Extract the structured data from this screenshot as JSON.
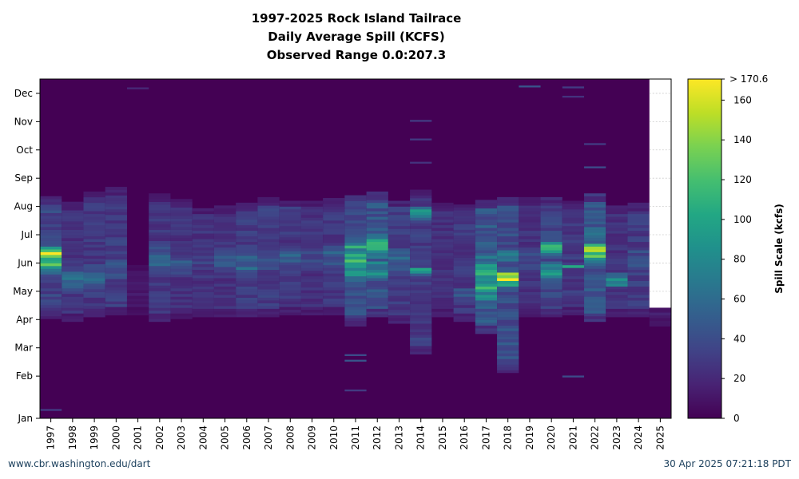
{
  "title": {
    "line1": "1997-2025 Rock Island Tailrace",
    "line2": "Daily Average Spill (KCFS)",
    "line3": "Observed Range 0.0:207.3"
  },
  "footer": {
    "source_link": "www.cbr.washington.edu/dart",
    "timestamp": "30 Apr 2025 07:21:18 PDT"
  },
  "chart_data": {
    "type": "heatmap",
    "title": "1997-2025 Rock Island Tailrace Daily Average Spill (KCFS)",
    "xlabel": "",
    "ylabel": "",
    "x_categories": [
      "1997",
      "1998",
      "1999",
      "2000",
      "2001",
      "2002",
      "2003",
      "2004",
      "2005",
      "2006",
      "2007",
      "2008",
      "2009",
      "2010",
      "2011",
      "2012",
      "2013",
      "2014",
      "2015",
      "2016",
      "2017",
      "2018",
      "2019",
      "2020",
      "2021",
      "2022",
      "2023",
      "2024",
      "2025"
    ],
    "y_categories": [
      "Jan",
      "Feb",
      "Mar",
      "Apr",
      "May",
      "Jun",
      "Jul",
      "Aug",
      "Sep",
      "Oct",
      "Nov",
      "Dec"
    ],
    "y_range_days": [
      1,
      366
    ],
    "colorbar": {
      "label": "Spill Scale (kcfs)",
      "range": [
        0,
        170.6
      ],
      "ticks": [
        0,
        20,
        40,
        60,
        80,
        100,
        120,
        140,
        160
      ],
      "top_label": "> 170.6",
      "colormap": "viridis"
    },
    "observed_range": [
      0.0,
      207.3
    ],
    "data_end_2025_day": 120,
    "season_profiles": [
      {
        "year": "1997",
        "start": 108,
        "end": 238,
        "base": 35,
        "peaks": [
          {
            "day": 168,
            "value": 135,
            "width": 14
          },
          {
            "day": 178,
            "value": 160,
            "width": 6
          }
        ]
      },
      {
        "year": "1998",
        "start": 105,
        "end": 232,
        "base": 25,
        "peaks": [
          {
            "day": 150,
            "value": 55,
            "width": 20
          }
        ]
      },
      {
        "year": "1999",
        "start": 110,
        "end": 244,
        "base": 28,
        "peaks": [
          {
            "day": 150,
            "value": 50,
            "width": 25
          }
        ]
      },
      {
        "year": "2000",
        "start": 112,
        "end": 248,
        "base": 30,
        "peaks": [
          {
            "day": 160,
            "value": 40,
            "width": 30
          }
        ]
      },
      {
        "year": "2001",
        "start": 112,
        "end": 165,
        "base": 12,
        "peaks": []
      },
      {
        "year": "2002",
        "start": 105,
        "end": 240,
        "base": 28,
        "peaks": [
          {
            "day": 170,
            "value": 60,
            "width": 20
          }
        ]
      },
      {
        "year": "2003",
        "start": 108,
        "end": 235,
        "base": 25,
        "peaks": [
          {
            "day": 165,
            "value": 45,
            "width": 20
          }
        ]
      },
      {
        "year": "2004",
        "start": 110,
        "end": 226,
        "base": 25,
        "peaks": [
          {
            "day": 170,
            "value": 35,
            "width": 20
          }
        ]
      },
      {
        "year": "2005",
        "start": 110,
        "end": 228,
        "base": 25,
        "peaks": [
          {
            "day": 170,
            "value": 45,
            "width": 20
          }
        ]
      },
      {
        "year": "2006",
        "start": 110,
        "end": 230,
        "base": 30,
        "peaks": [
          {
            "day": 165,
            "value": 55,
            "width": 20
          }
        ]
      },
      {
        "year": "2007",
        "start": 110,
        "end": 236,
        "base": 30,
        "peaks": [
          {
            "day": 170,
            "value": 45,
            "width": 20
          }
        ]
      },
      {
        "year": "2008",
        "start": 112,
        "end": 234,
        "base": 28,
        "peaks": [
          {
            "day": 175,
            "value": 50,
            "width": 18
          }
        ]
      },
      {
        "year": "2009",
        "start": 112,
        "end": 234,
        "base": 25,
        "peaks": [
          {
            "day": 170,
            "value": 40,
            "width": 18
          }
        ]
      },
      {
        "year": "2010",
        "start": 112,
        "end": 236,
        "base": 28,
        "peaks": [
          {
            "day": 175,
            "value": 50,
            "width": 18
          }
        ]
      },
      {
        "year": "2011",
        "start": 100,
        "end": 240,
        "base": 40,
        "peaks": [
          {
            "day": 165,
            "value": 100,
            "width": 25
          },
          {
            "day": 185,
            "value": 90,
            "width": 8
          }
        ]
      },
      {
        "year": "2012",
        "start": 110,
        "end": 242,
        "base": 45,
        "peaks": [
          {
            "day": 185,
            "value": 120,
            "width": 15
          },
          {
            "day": 160,
            "value": 80,
            "width": 15
          }
        ]
      },
      {
        "year": "2013",
        "start": 103,
        "end": 234,
        "base": 30,
        "peaks": [
          {
            "day": 170,
            "value": 50,
            "width": 20
          }
        ]
      },
      {
        "year": "2014",
        "start": 70,
        "end": 245,
        "base": 30,
        "peaks": [
          {
            "day": 158,
            "value": 110,
            "width": 4
          },
          {
            "day": 220,
            "value": 90,
            "width": 8
          }
        ]
      },
      {
        "year": "2015",
        "start": 110,
        "end": 230,
        "base": 25,
        "peaks": []
      },
      {
        "year": "2016",
        "start": 105,
        "end": 230,
        "base": 28,
        "peaks": [
          {
            "day": 135,
            "value": 50,
            "width": 8
          }
        ]
      },
      {
        "year": "2017",
        "start": 92,
        "end": 234,
        "base": 45,
        "peaks": [
          {
            "day": 150,
            "value": 110,
            "width": 30
          }
        ]
      },
      {
        "year": "2018",
        "start": 50,
        "end": 236,
        "base": 40,
        "peaks": [
          {
            "day": 150,
            "value": 175,
            "width": 8
          },
          {
            "day": 175,
            "value": 60,
            "width": 15
          }
        ]
      },
      {
        "year": "2019",
        "start": 110,
        "end": 236,
        "base": 25,
        "peaks": [
          {
            "day": 170,
            "value": 40,
            "width": 20
          }
        ]
      },
      {
        "year": "2020",
        "start": 110,
        "end": 236,
        "base": 35,
        "peaks": [
          {
            "day": 158,
            "value": 100,
            "width": 12
          },
          {
            "day": 182,
            "value": 110,
            "width": 10
          }
        ]
      },
      {
        "year": "2021",
        "start": 112,
        "end": 232,
        "base": 28,
        "peaks": [
          {
            "day": 163,
            "value": 100,
            "width": 2
          }
        ]
      },
      {
        "year": "2022",
        "start": 105,
        "end": 240,
        "base": 45,
        "peaks": [
          {
            "day": 178,
            "value": 140,
            "width": 12
          },
          {
            "day": 200,
            "value": 80,
            "width": 10
          }
        ]
      },
      {
        "year": "2023",
        "start": 110,
        "end": 228,
        "base": 25,
        "peaks": [
          {
            "day": 148,
            "value": 100,
            "width": 8
          }
        ]
      },
      {
        "year": "2024",
        "start": 110,
        "end": 230,
        "base": 30,
        "peaks": [
          {
            "day": 170,
            "value": 45,
            "width": 20
          }
        ]
      },
      {
        "year": "2025",
        "start": 100,
        "end": 120,
        "base": 15,
        "peaks": []
      }
    ],
    "notable_events": [
      {
        "year": "1997",
        "day": 9,
        "value": 30
      },
      {
        "year": "2001",
        "day": 355,
        "value": 20
      },
      {
        "year": "2011",
        "day": 62,
        "value": 45
      },
      {
        "year": "2011",
        "day": 68,
        "value": 40
      },
      {
        "year": "2011",
        "day": 30,
        "value": 30
      },
      {
        "year": "2014",
        "day": 275,
        "value": 25
      },
      {
        "year": "2014",
        "day": 300,
        "value": 30
      },
      {
        "year": "2014",
        "day": 320,
        "value": 30
      },
      {
        "year": "2019",
        "day": 357,
        "value": 45
      },
      {
        "year": "2021",
        "day": 356,
        "value": 30
      },
      {
        "year": "2021",
        "day": 346,
        "value": 25
      },
      {
        "year": "2021",
        "day": 45,
        "value": 40
      },
      {
        "year": "2022",
        "day": 270,
        "value": 40
      },
      {
        "year": "2022",
        "day": 295,
        "value": 30
      }
    ]
  }
}
